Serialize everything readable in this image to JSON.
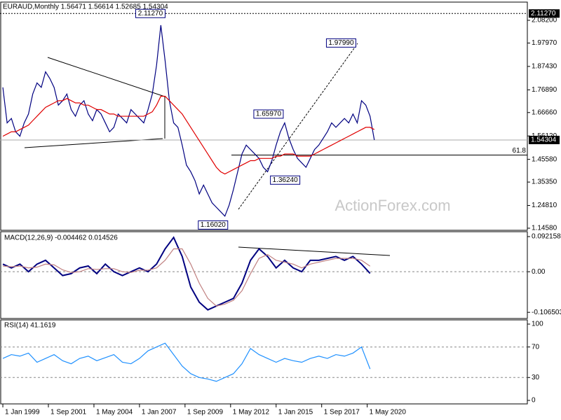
{
  "chart_data": [
    {
      "type": "line",
      "title": "EURAUD,Monthly  1.56471 1.56614 1.52685 1.54304",
      "x": [
        0,
        3,
        6,
        9,
        12,
        15,
        18,
        21,
        24,
        27,
        30,
        33,
        36,
        39,
        42,
        45,
        48,
        51,
        54,
        57,
        60,
        63,
        66,
        69,
        72,
        75,
        78,
        81,
        84,
        87,
        90,
        93,
        96,
        99,
        102,
        105,
        108,
        111,
        114,
        117,
        120,
        123,
        126,
        129,
        132,
        135,
        138,
        141,
        144,
        147,
        150,
        153,
        156,
        159,
        162,
        165,
        168,
        171,
        174,
        177,
        180,
        183,
        186,
        189,
        192,
        195,
        198,
        201,
        204,
        207,
        210,
        213,
        216,
        219,
        222,
        225,
        228,
        231,
        234,
        237,
        240,
        243,
        246,
        249,
        252,
        255,
        258,
        261
      ],
      "series": [
        {
          "name": "Close",
          "color": "#000080",
          "values": [
            1.78,
            1.62,
            1.64,
            1.58,
            1.56,
            1.62,
            1.66,
            1.75,
            1.8,
            1.78,
            1.85,
            1.82,
            1.78,
            1.7,
            1.72,
            1.75,
            1.68,
            1.65,
            1.7,
            1.72,
            1.66,
            1.63,
            1.68,
            1.66,
            1.62,
            1.58,
            1.6,
            1.66,
            1.64,
            1.62,
            1.68,
            1.66,
            1.64,
            1.62,
            1.68,
            1.75,
            1.88,
            2.06,
            1.9,
            1.72,
            1.62,
            1.6,
            1.52,
            1.43,
            1.4,
            1.36,
            1.3,
            1.34,
            1.3,
            1.26,
            1.24,
            1.22,
            1.2,
            1.25,
            1.32,
            1.4,
            1.48,
            1.52,
            1.5,
            1.48,
            1.46,
            1.42,
            1.4,
            1.45,
            1.52,
            1.58,
            1.62,
            1.55,
            1.5,
            1.46,
            1.44,
            1.42,
            1.46,
            1.5,
            1.52,
            1.55,
            1.58,
            1.62,
            1.6,
            1.62,
            1.64,
            1.62,
            1.66,
            1.62,
            1.72,
            1.7,
            1.65,
            1.543
          ]
        },
        {
          "name": "MA",
          "color": "#e00000",
          "values": [
            1.56,
            1.57,
            1.58,
            1.58,
            1.59,
            1.6,
            1.61,
            1.63,
            1.65,
            1.67,
            1.69,
            1.7,
            1.71,
            1.72,
            1.72,
            1.73,
            1.72,
            1.71,
            1.71,
            1.7,
            1.7,
            1.69,
            1.68,
            1.68,
            1.67,
            1.66,
            1.66,
            1.65,
            1.65,
            1.65,
            1.65,
            1.65,
            1.65,
            1.65,
            1.66,
            1.67,
            1.7,
            1.74,
            1.74,
            1.72,
            1.7,
            1.68,
            1.66,
            1.63,
            1.6,
            1.57,
            1.54,
            1.51,
            1.48,
            1.45,
            1.42,
            1.4,
            1.39,
            1.4,
            1.41,
            1.42,
            1.43,
            1.44,
            1.45,
            1.45,
            1.46,
            1.46,
            1.46,
            1.46,
            1.47,
            1.47,
            1.48,
            1.48,
            1.48,
            1.47,
            1.47,
            1.47,
            1.47,
            1.48,
            1.49,
            1.5,
            1.51,
            1.52,
            1.53,
            1.54,
            1.55,
            1.56,
            1.57,
            1.58,
            1.59,
            1.6,
            1.6,
            1.59
          ]
        }
      ],
      "xlim": [
        -2,
        368.5
      ],
      "xticks": [
        {
          "value": 0,
          "label": "1 Jan 1999"
        },
        {
          "value": 32,
          "label": "1 Sep 2001"
        },
        {
          "value": 64,
          "label": "1 May 2004"
        },
        {
          "value": 96,
          "label": "1 Jan 2007"
        },
        {
          "value": 128,
          "label": "1 Sep 2009"
        },
        {
          "value": 160,
          "label": "1 May 2012"
        },
        {
          "value": 192,
          "label": "1 Jan 2015"
        },
        {
          "value": 224,
          "label": "1 Sep 2017"
        },
        {
          "value": 256,
          "label": "1 May 2020"
        }
      ],
      "ylim": [
        1.1363,
        2.164
      ],
      "yticks": [
        {
          "value": 2.082,
          "label": "2.08200"
        },
        {
          "value": 1.9797,
          "label": "1.97970"
        },
        {
          "value": 1.8743,
          "label": "1.87430"
        },
        {
          "value": 1.7689,
          "label": "1.76890"
        },
        {
          "value": 1.6666,
          "label": "1.66660"
        },
        {
          "value": 1.5612,
          "label": "1.56120"
        },
        {
          "value": 1.4558,
          "label": "1.45580"
        },
        {
          "value": 1.3535,
          "label": "1.35350"
        },
        {
          "value": 1.2481,
          "label": "1.24810"
        },
        {
          "value": 1.1458,
          "label": "1.14580"
        }
      ],
      "annotations": [
        {
          "x": 115,
          "value": 2.1127,
          "label": "2.11270"
        },
        {
          "x": 249,
          "value": 1.9799,
          "label": "1.97990"
        },
        {
          "x": 198,
          "value": 1.6597,
          "label": "1.65970"
        },
        {
          "x": 187,
          "value": 1.3624,
          "label": "1.36240"
        },
        {
          "x": 159,
          "value": 1.1602,
          "label": "1.16020"
        }
      ],
      "high_line": {
        "value": 2.1127,
        "label": "2.11270"
      },
      "last_price": {
        "value": 1.54304,
        "label": "1.54304"
      },
      "fib_level": {
        "value": 1.475,
        "label": "61.8"
      },
      "watermark": "ActionForex.com"
    },
    {
      "type": "line",
      "title": "MACD(12,26,9) -0.004462 0.014526",
      "x": [
        0,
        6,
        12,
        18,
        24,
        30,
        36,
        42,
        48,
        54,
        60,
        66,
        72,
        78,
        84,
        90,
        96,
        102,
        108,
        114,
        120,
        126,
        132,
        138,
        144,
        150,
        156,
        162,
        168,
        174,
        180,
        186,
        192,
        198,
        204,
        210,
        216,
        222,
        228,
        234,
        240,
        246,
        252,
        258
      ],
      "series": [
        {
          "name": "MACD",
          "color": "#000080",
          "values": [
            0.02,
            0.01,
            0.02,
            0.0,
            0.02,
            0.03,
            0.01,
            -0.01,
            -0.005,
            0.01,
            0.015,
            -0.005,
            0.02,
            0.0,
            -0.01,
            0.0,
            0.01,
            0.0,
            0.02,
            0.06,
            0.09,
            0.04,
            -0.04,
            -0.08,
            -0.1,
            -0.09,
            -0.08,
            -0.07,
            -0.03,
            0.03,
            0.06,
            0.04,
            0.01,
            0.03,
            0.01,
            0.0,
            0.03,
            0.03,
            0.035,
            0.04,
            0.03,
            0.04,
            0.02,
            -0.004462
          ]
        },
        {
          "name": "Signal",
          "color": "#c08080",
          "values": [
            0.015,
            0.013,
            0.015,
            0.01,
            0.012,
            0.02,
            0.018,
            0.005,
            -0.002,
            0.0,
            0.008,
            0.006,
            0.008,
            0.008,
            0.0,
            -0.002,
            0.004,
            0.004,
            0.01,
            0.03,
            0.06,
            0.06,
            0.02,
            -0.03,
            -0.07,
            -0.09,
            -0.085,
            -0.075,
            -0.05,
            -0.005,
            0.035,
            0.045,
            0.03,
            0.025,
            0.02,
            0.01,
            0.02,
            0.025,
            0.03,
            0.035,
            0.035,
            0.035,
            0.03,
            0.014526
          ]
        }
      ],
      "xlim": [
        -2,
        368.5
      ],
      "ylim": [
        -0.1227,
        0.105
      ],
      "yticks": [
        0.092158,
        {
          "value": 0,
          "label": "0.00"
        },
        -0.106503
      ]
    },
    {
      "type": "line",
      "title": "RSI(14) 41.1619",
      "x": [
        0,
        6,
        12,
        18,
        24,
        30,
        36,
        42,
        48,
        54,
        60,
        66,
        72,
        78,
        84,
        90,
        96,
        102,
        108,
        114,
        120,
        126,
        132,
        138,
        144,
        150,
        156,
        162,
        168,
        174,
        180,
        186,
        192,
        198,
        204,
        210,
        216,
        222,
        228,
        234,
        240,
        246,
        252,
        258
      ],
      "series": [
        {
          "name": "RSI",
          "color": "#1e90ff",
          "values": [
            55,
            60,
            58,
            62,
            50,
            55,
            60,
            52,
            48,
            55,
            58,
            52,
            56,
            60,
            50,
            48,
            55,
            65,
            70,
            75,
            60,
            45,
            35,
            30,
            28,
            25,
            30,
            35,
            48,
            68,
            60,
            55,
            50,
            55,
            52,
            50,
            55,
            58,
            55,
            60,
            58,
            62,
            70,
            41.1619
          ]
        }
      ],
      "xlim": [
        -2,
        368.5
      ],
      "ylim": [
        -4.6,
        105.5
      ],
      "yticks": [
        100,
        70,
        30,
        0
      ]
    }
  ]
}
